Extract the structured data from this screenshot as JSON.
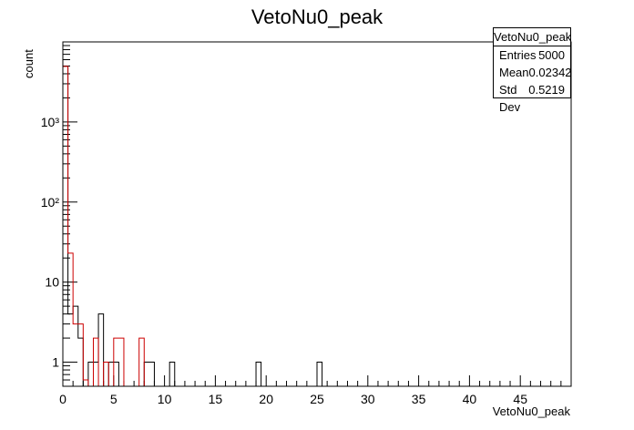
{
  "chart_data": {
    "type": "histogram",
    "title": "VetoNu0_peak",
    "xlabel": "VetoNu0_peak",
    "ylabel": "count",
    "xlim": [
      0,
      50
    ],
    "ylim_log": [
      0.5,
      10000
    ],
    "log_y": true,
    "bin_width": 0.5,
    "x_ticks": [
      0,
      5,
      10,
      15,
      20,
      25,
      30,
      35,
      40,
      45
    ],
    "x_tick_labels": [
      "0",
      "5",
      "10",
      "15",
      "20",
      "25",
      "30",
      "35",
      "40",
      "45"
    ],
    "y_ticks": [
      1,
      10,
      100,
      1000
    ],
    "y_tick_labels": [
      "1",
      "10",
      "10²",
      "10³"
    ],
    "series": [
      {
        "color": "#000000",
        "bins": [
          [
            0,
            4960
          ],
          [
            0.5,
            4
          ],
          [
            1,
            5
          ],
          [
            1.5,
            2
          ],
          [
            2,
            0
          ],
          [
            2.5,
            1
          ],
          [
            3,
            1
          ],
          [
            3.5,
            4
          ],
          [
            4,
            0
          ],
          [
            4.5,
            1
          ],
          [
            5,
            1
          ],
          [
            5.5,
            0
          ],
          [
            6,
            0
          ],
          [
            6.5,
            0
          ],
          [
            7,
            0
          ],
          [
            7.5,
            0
          ],
          [
            8,
            1
          ],
          [
            8.5,
            1
          ],
          [
            9,
            0
          ],
          [
            10,
            0
          ],
          [
            10.5,
            1
          ],
          [
            11,
            0
          ],
          [
            19,
            1
          ],
          [
            19.5,
            0
          ],
          [
            25,
            1
          ],
          [
            25.5,
            0
          ]
        ]
      },
      {
        "color": "#cc0000",
        "bins": [
          [
            0,
            4940
          ],
          [
            0.5,
            23
          ],
          [
            1,
            3
          ],
          [
            1.5,
            3
          ],
          [
            2,
            0.6
          ],
          [
            2.5,
            0
          ],
          [
            3,
            2
          ],
          [
            3.5,
            0
          ],
          [
            4,
            1
          ],
          [
            4.5,
            0
          ],
          [
            5,
            2
          ],
          [
            5.5,
            2
          ],
          [
            6,
            0
          ],
          [
            7,
            0
          ],
          [
            7.5,
            2
          ],
          [
            8,
            0
          ]
        ]
      }
    ]
  },
  "stats_box": {
    "title": "VetoNu0_peak",
    "entries_label": "Entries",
    "entries_value": "5000",
    "mean_label": "Mean",
    "mean_value": "0.02342",
    "stddev_label": "Std Dev",
    "stddev_value": "0.5219"
  }
}
